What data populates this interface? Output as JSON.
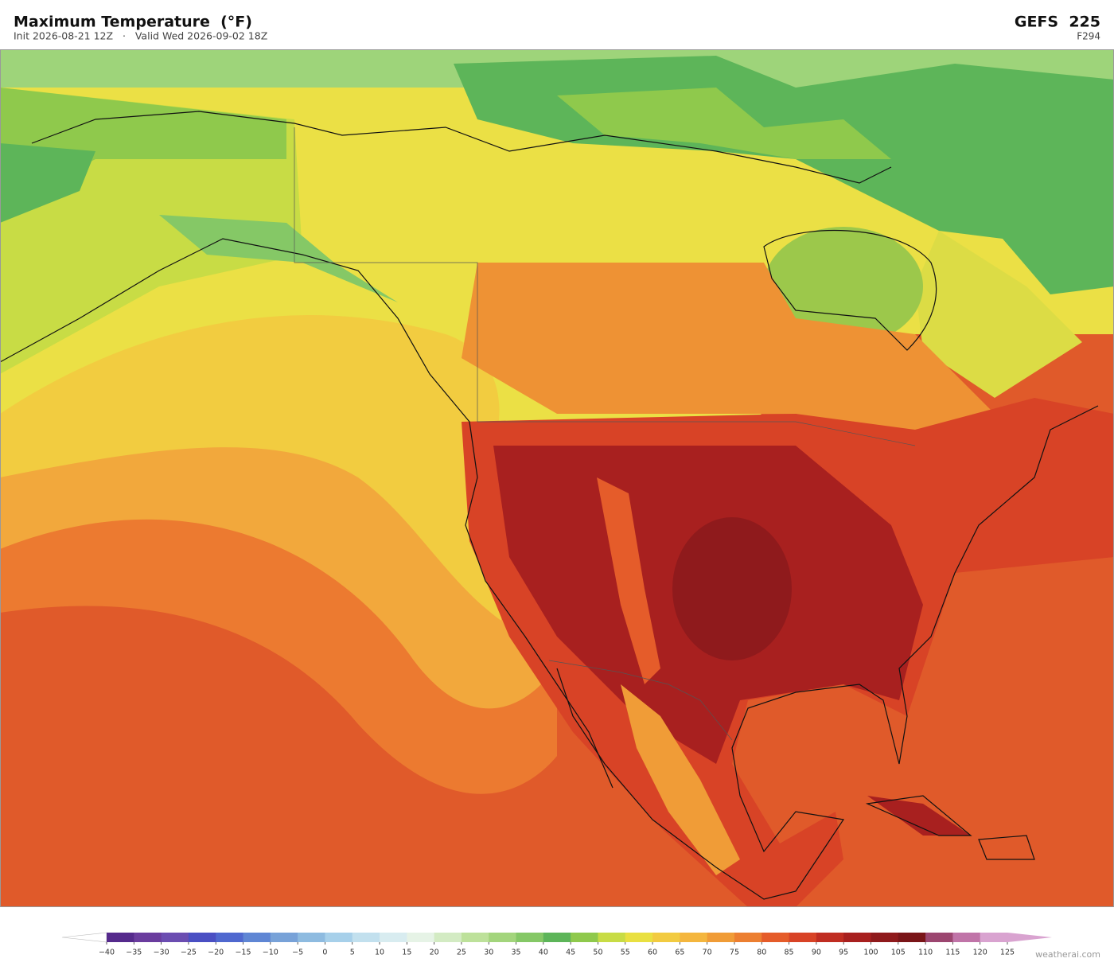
{
  "header": {
    "title": "Maximum Temperature  (°F)",
    "subtitle": "Init 2026-08-21 12Z   ·   Valid Wed 2026-09-02 18Z",
    "model": "GEFS  225",
    "forecast_hour": "F294"
  },
  "colorbar": {
    "ticks": [
      {
        "value": -40,
        "label": "−40"
      },
      {
        "value": -35,
        "label": "−35"
      },
      {
        "value": -30,
        "label": "−30"
      },
      {
        "value": -25,
        "label": "−25"
      },
      {
        "value": -20,
        "label": "−20"
      },
      {
        "value": -15,
        "label": "−15"
      },
      {
        "value": -10,
        "label": "−10"
      },
      {
        "value": -5,
        "label": "−5"
      },
      0,
      5,
      10,
      15,
      20,
      25,
      30,
      35,
      40,
      45,
      50,
      55,
      60,
      65,
      70,
      75,
      80,
      85,
      90,
      95,
      100,
      105,
      110,
      115,
      120,
      125
    ],
    "colors": [
      "#552a8c",
      "#6a3c9e",
      "#6b4db1",
      "#4a4fc3",
      "#4f68cf",
      "#5f86d4",
      "#78a2d8",
      "#8ebbe0",
      "#a7d0ea",
      "#c2e0ee",
      "#d8ecf0",
      "#e6f3e6",
      "#d3ebc3",
      "#bde19a",
      "#a3d57c",
      "#85c866",
      "#5db559",
      "#8fc94c",
      "#c8dc45",
      "#e9e041",
      "#f2cb41",
      "#f4b63e",
      "#f09c37",
      "#ec7f31",
      "#e55c2a",
      "#d84326",
      "#c02d22",
      "#a8201f",
      "#8f1a1c",
      "#7a1518",
      "#9c4670",
      "#c074a8",
      "#d9a3d0"
    ],
    "under_color": "#ffffff",
    "over_color": "#d9a3d0"
  },
  "footer": {
    "credit": "weatherai.com"
  }
}
